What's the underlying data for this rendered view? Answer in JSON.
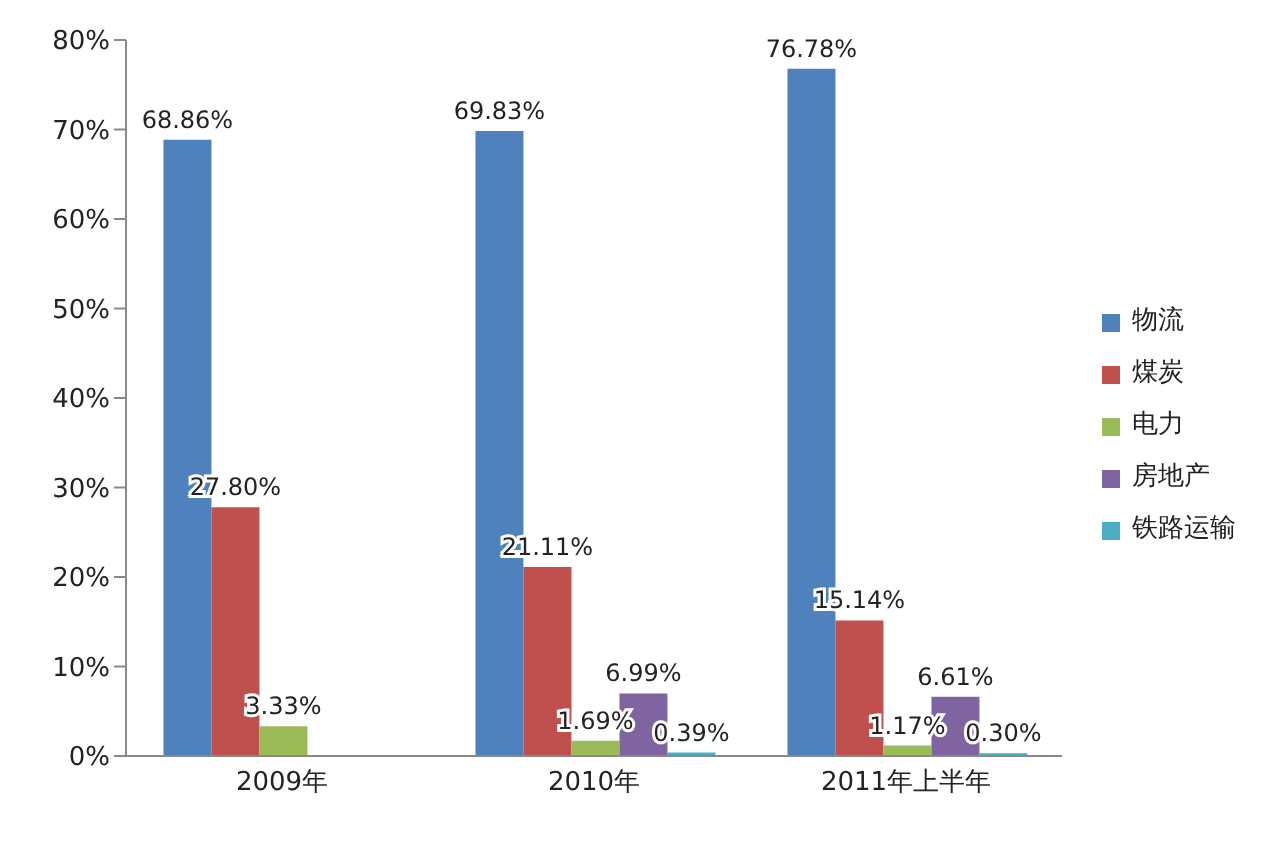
{
  "chart_data": {
    "type": "bar",
    "categories": [
      "2009年",
      "2010年",
      "2011年上半年"
    ],
    "series": [
      {
        "name": "物流",
        "color": "#4f81bd",
        "values": [
          68.86,
          69.83,
          76.78
        ],
        "value_labels": [
          "68.86%",
          "69.83%",
          "76.78%"
        ]
      },
      {
        "name": "煤炭",
        "color": "#c0504d",
        "values": [
          27.8,
          21.11,
          15.14
        ],
        "value_labels": [
          "27.80%",
          "21.11%",
          "15.14%"
        ]
      },
      {
        "name": "电力",
        "color": "#9bbb59",
        "values": [
          3.33,
          1.69,
          1.17
        ],
        "value_labels": [
          "3.33%",
          "1.69%",
          "1.17%"
        ]
      },
      {
        "name": "房地产",
        "color": "#8064a2",
        "values": [
          null,
          6.99,
          6.61
        ],
        "value_labels": [
          null,
          "6.99%",
          "6.61%"
        ]
      },
      {
        "name": "铁路运输",
        "color": "#4bacc6",
        "values": [
          null,
          0.39,
          0.3
        ],
        "value_labels": [
          null,
          "0.39%",
          "0.30%"
        ]
      }
    ],
    "ylim": [
      0,
      80
    ],
    "yticks": [
      {
        "value": 0,
        "label": "0%"
      },
      {
        "value": 10,
        "label": "10%"
      },
      {
        "value": 20,
        "label": "20%"
      },
      {
        "value": 30,
        "label": "30%"
      },
      {
        "value": 40,
        "label": "40%"
      },
      {
        "value": 50,
        "label": "50%"
      },
      {
        "value": 60,
        "label": "60%"
      },
      {
        "value": 70,
        "label": "70%"
      },
      {
        "value": 80,
        "label": "80%"
      }
    ],
    "grid": false,
    "legend": "right"
  }
}
